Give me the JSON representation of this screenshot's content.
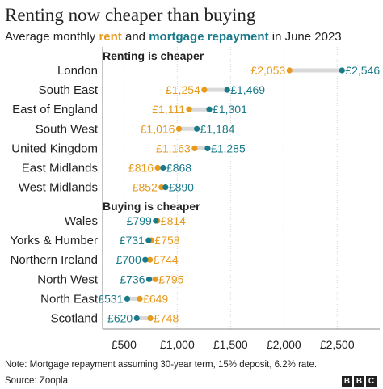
{
  "title": "Renting now cheaper than buying",
  "subtitle": {
    "prefix": "Average monthly",
    "rent": "rent",
    "and": "and",
    "mortgage": "mortgage repayment",
    "suffix": "in June 2023"
  },
  "colors": {
    "rent": "#e69a1e",
    "mortgage": "#1a7a8a",
    "connector": "#d9d9d9"
  },
  "chart_data": {
    "type": "dot-range",
    "xlim": [
      300,
      2900
    ],
    "ticks": [
      500,
      1000,
      1500,
      2000,
      2500
    ],
    "tick_labels": [
      "£500",
      "£1,000",
      "£1,500",
      "£2,000",
      "£2,500"
    ],
    "series": [
      {
        "name": "rent",
        "color": "#e69a1e"
      },
      {
        "name": "mortgage repayment",
        "color": "#1a7a8a"
      }
    ],
    "groups": [
      {
        "label": "Renting is cheaper",
        "rows": [
          {
            "region": "London",
            "rent": 2053,
            "mortgage": 2546,
            "rent_label": "£2,053",
            "mortgage_label": "£2,546"
          },
          {
            "region": "South East",
            "rent": 1254,
            "mortgage": 1469,
            "rent_label": "£1,254",
            "mortgage_label": "£1,469"
          },
          {
            "region": "East of England",
            "rent": 1111,
            "mortgage": 1301,
            "rent_label": "£1,111",
            "mortgage_label": "£1,301"
          },
          {
            "region": "South West",
            "rent": 1016,
            "mortgage": 1184,
            "rent_label": "£1,016",
            "mortgage_label": "£1,184"
          },
          {
            "region": "United Kingdom",
            "rent": 1163,
            "mortgage": 1285,
            "rent_label": "£1,163",
            "mortgage_label": "£1,285"
          },
          {
            "region": "East Midlands",
            "rent": 816,
            "mortgage": 868,
            "rent_label": "£816",
            "mortgage_label": "£868"
          },
          {
            "region": "West Midlands",
            "rent": 852,
            "mortgage": 890,
            "rent_label": "£852",
            "mortgage_label": "£890"
          }
        ]
      },
      {
        "label": "Buying is cheaper",
        "rows": [
          {
            "region": "Wales",
            "rent": 814,
            "mortgage": 799,
            "rent_label": "£814",
            "mortgage_label": "£799"
          },
          {
            "region": "Yorks & Humber",
            "rent": 758,
            "mortgage": 731,
            "rent_label": "£758",
            "mortgage_label": "£731"
          },
          {
            "region": "Northern Ireland",
            "rent": 744,
            "mortgage": 700,
            "rent_label": "£744",
            "mortgage_label": "£700"
          },
          {
            "region": "North West",
            "rent": 795,
            "mortgage": 736,
            "rent_label": "£795",
            "mortgage_label": "£736"
          },
          {
            "region": "North East",
            "rent": 649,
            "mortgage": 531,
            "rent_label": "£649",
            "mortgage_label": "£531"
          },
          {
            "region": "Scotland",
            "rent": 748,
            "mortgage": 620,
            "rent_label": "£748",
            "mortgage_label": "£620"
          }
        ]
      }
    ]
  },
  "note": "Note: Mortgage repayment assuming 30-year term, 15% deposit, 6.2% rate.",
  "source": "Source: Zoopla",
  "logo": [
    "B",
    "B",
    "C"
  ]
}
